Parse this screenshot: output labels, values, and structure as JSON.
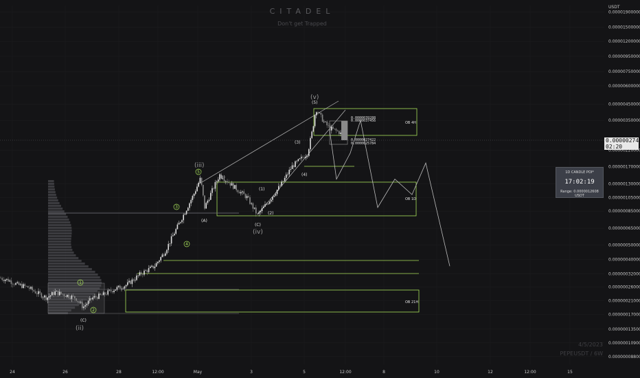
{
  "watermark": {
    "title": "CITADEL",
    "subtitle": "Don't get Trapped",
    "date": "4/5/2023",
    "symbol": "PEPEUSDT / 6W"
  },
  "axis": {
    "currency": "USDT",
    "y_ticks": [
      "0.00001900000",
      "0.00001500000",
      "0.00001200000",
      "0.00000950000",
      "0.00000750000",
      "0.00000600000",
      "0.00000450000",
      "0.00000350000",
      "0.00000220000",
      "0.00000170000",
      "0.00000130000",
      "0.00000105000",
      "0.00000085000",
      "0.00000065000",
      "0.00000050000",
      "0.00000040000",
      "0.00000032000",
      "0.00000026000",
      "0.00000021000",
      "0.00000017000",
      "0.00000013500",
      "0.00000010900",
      "0.00000008800"
    ],
    "x_ticks": [
      "24",
      "26",
      "28",
      "12:00",
      "May",
      "3",
      "5",
      "12:00",
      "8",
      "10",
      "12",
      "12:00",
      "15"
    ]
  },
  "current_price": {
    "value": "0.00000274221",
    "countdown": "02:20"
  },
  "timer": {
    "title": "1D CANDLE POI*",
    "time": "17:02:19",
    "range": "Range: 0.0000012608 USDT"
  },
  "colors": {
    "up": "#e0e0e0",
    "down": "#8a8a8a",
    "zone": "#a8e05a",
    "grid": "#1c1c1f"
  },
  "zones": [
    {
      "label": "OB 4H"
    },
    {
      "label": "OB 1D"
    },
    {
      "label": "OB 21H"
    }
  ],
  "zone_values": [
    "0.0000039288",
    "0.0000037456",
    "0.0000027422",
    "0.0000025784"
  ],
  "wave_labels": {
    "major": [
      "(ii)",
      "(iii)",
      "(iv)",
      "(v)"
    ],
    "minor": [
      "(C)",
      "(A)",
      "(B)",
      "(C)",
      "(1)",
      "(2)",
      "(3)",
      "(4)",
      "(5)"
    ],
    "circled": [
      "1",
      "2",
      "3",
      "4",
      "5"
    ]
  },
  "chart_data": {
    "type": "candlestick",
    "title": "",
    "scale": "log",
    "ylim": [
      8.5e-08,
      2.1e-05
    ],
    "y_ticks": [
      1.9e-05,
      1.5e-05,
      1.2e-05,
      9.5e-06,
      7.5e-06,
      6e-06,
      4.5e-06,
      3.5e-06,
      2.2e-06,
      1.7e-06,
      1.3e-06,
      1.05e-06,
      8.5e-07,
      6.5e-07,
      5e-07,
      4e-07,
      3.2e-07,
      2.6e-07,
      2.1e-07,
      1.7e-07,
      1.35e-07,
      1.09e-07,
      8.8e-08
    ],
    "price_path": [
      [
        0,
        3e-07
      ],
      [
        12,
        2.9e-07
      ],
      [
        25,
        2.7e-07
      ],
      [
        40,
        2.6e-07
      ],
      [
        52,
        2.4e-07
      ],
      [
        68,
        2.2e-07
      ],
      [
        80,
        2.4e-07
      ],
      [
        95,
        2.3e-07
      ],
      [
        110,
        2.2e-07
      ],
      [
        121,
        1.9e-07
      ],
      [
        135,
        2.2e-07
      ],
      [
        150,
        2.3e-07
      ],
      [
        165,
        2.5e-07
      ],
      [
        185,
        2.7e-07
      ],
      [
        205,
        3.2e-07
      ],
      [
        225,
        3.6e-07
      ],
      [
        240,
        4.5e-07
      ],
      [
        255,
        6.2e-07
      ],
      [
        270,
        8.5e-07
      ],
      [
        282,
        1.1e-06
      ],
      [
        292,
        1.42e-06
      ],
      [
        298,
        9e-07
      ],
      [
        310,
        1.2e-06
      ],
      [
        320,
        1.5e-06
      ],
      [
        340,
        1.25e-06
      ],
      [
        360,
        1.05e-06
      ],
      [
        375,
        8e-07
      ],
      [
        392,
        1e-06
      ],
      [
        410,
        1.3e-06
      ],
      [
        425,
        1.7e-06
      ],
      [
        440,
        1.95e-06
      ],
      [
        448,
        2.1e-06
      ],
      [
        455,
        3e-06
      ],
      [
        460,
        4.2e-06
      ],
      [
        472,
        3.4e-06
      ],
      [
        480,
        3.1e-06
      ],
      [
        495,
        2.9e-06
      ],
      [
        498,
        2.74e-06
      ]
    ],
    "projection_path": [
      [
        480,
        3e-06
      ],
      [
        490,
        1.4e-06
      ],
      [
        510,
        2.1e-06
      ],
      [
        525,
        3.5e-06
      ],
      [
        550,
        9e-07
      ],
      [
        575,
        1.4e-06
      ],
      [
        600,
        1.1e-06
      ],
      [
        620,
        1.8e-06
      ],
      [
        655,
        3.6e-07
      ]
    ]
  }
}
